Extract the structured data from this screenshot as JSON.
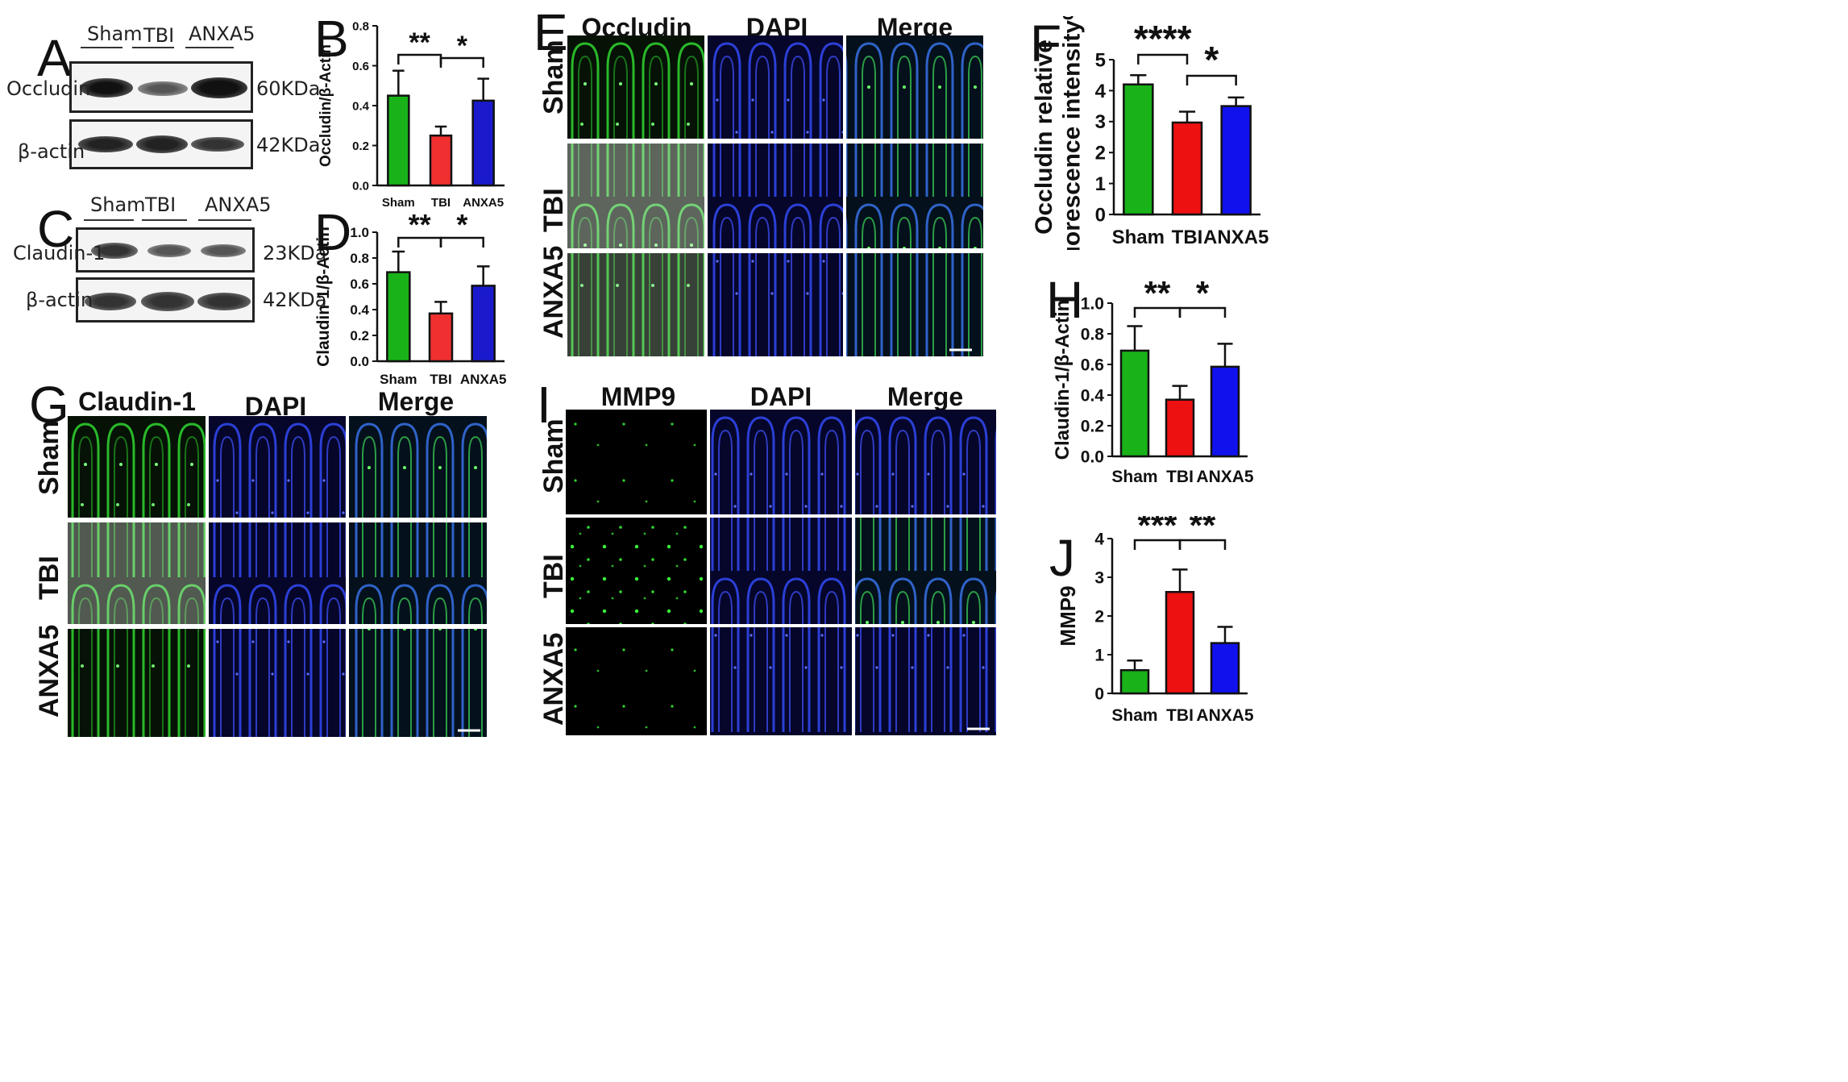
{
  "panels": {
    "A": {
      "letter": "A",
      "lanes": [
        "Sham",
        "TBI",
        "ANXA5"
      ],
      "rows": [
        {
          "protein": "Occludin",
          "size": "60KDa"
        },
        {
          "protein": "β-actin",
          "size": "42KDa"
        }
      ]
    },
    "C": {
      "letter": "C",
      "lanes": [
        "Sham",
        "TBI",
        "ANXA5"
      ],
      "rows": [
        {
          "protein": "Claudin-1",
          "size": "23KDa"
        },
        {
          "protein": "β-actin",
          "size": "42KDa"
        }
      ]
    },
    "E": {
      "letter": "E",
      "columns": [
        "Occludin",
        "DAPI",
        "Merge"
      ],
      "rows": [
        "Sham",
        "TBI",
        "ANXA5"
      ]
    },
    "G": {
      "letter": "G",
      "columns": [
        "Claudin-1",
        "DAPI",
        "Merge"
      ],
      "rows": [
        "Sham",
        "TBI",
        "ANXA5"
      ]
    },
    "I": {
      "letter": "I",
      "columns": [
        "MMP9",
        "DAPI",
        "Merge"
      ],
      "rows": [
        "Sham",
        "TBI",
        "ANXA5"
      ]
    }
  },
  "colors": {
    "sham": "#19b219",
    "tbi": "#f03030",
    "anxa5": "#1a1acc",
    "tbi_bright": "#ee1111",
    "anxa5_bright": "#1111ee",
    "green_stain": "#2fd62f",
    "blue_stain": "#2b3fd6"
  },
  "chart_data": [
    {
      "id": "B",
      "letter": "B",
      "type": "bar",
      "categories": [
        "Sham",
        "TBI",
        "ANXA5"
      ],
      "values": [
        0.45,
        0.25,
        0.425
      ],
      "errors": [
        0.125,
        0.045,
        0.11
      ],
      "ylabel": "Occludin/β-Actin",
      "ylim": [
        0,
        0.8
      ],
      "yticks": [
        "0.0",
        "0.2",
        "0.4",
        "0.6",
        "0.8"
      ],
      "significance": [
        "**",
        "*"
      ]
    },
    {
      "id": "D",
      "letter": "D",
      "type": "bar",
      "categories": [
        "Sham",
        "TBI",
        "ANXA5"
      ],
      "values": [
        0.69,
        0.37,
        0.585
      ],
      "errors": [
        0.16,
        0.09,
        0.15
      ],
      "ylabel": "Claudin-1/β-Actin",
      "ylim": [
        0,
        1.0
      ],
      "yticks": [
        "0.0",
        "0.2",
        "0.4",
        "0.6",
        "0.8",
        "1.0"
      ],
      "significance": [
        "**",
        "*"
      ]
    },
    {
      "id": "F",
      "letter": "F",
      "type": "bar",
      "categories": [
        "Sham",
        "TBI",
        "ANXA5"
      ],
      "values": [
        4.2,
        2.97,
        3.5
      ],
      "errors": [
        0.3,
        0.35,
        0.28
      ],
      "ylabel": "Occludin relative fluorescence intensity%",
      "ylim": [
        0,
        5
      ],
      "yticks": [
        "0",
        "1",
        "2",
        "3",
        "4",
        "5"
      ],
      "significance": [
        "****",
        "*"
      ]
    },
    {
      "id": "H",
      "letter": "H",
      "type": "bar",
      "categories": [
        "Sham",
        "TBI",
        "ANXA5"
      ],
      "values": [
        0.69,
        0.37,
        0.585
      ],
      "errors": [
        0.16,
        0.09,
        0.15
      ],
      "ylabel": "Claudin-1/β-Actin",
      "ylim": [
        0,
        1.0
      ],
      "yticks": [
        "0.0",
        "0.2",
        "0.4",
        "0.6",
        "0.8",
        "1.0"
      ],
      "significance": [
        "**",
        "*"
      ]
    },
    {
      "id": "J",
      "letter": "J",
      "type": "bar",
      "categories": [
        "Sham",
        "TBI",
        "ANXA5"
      ],
      "values": [
        0.6,
        2.62,
        1.3
      ],
      "errors": [
        0.25,
        0.58,
        0.42
      ],
      "ylabel": "MMP9",
      "ylim": [
        0,
        4
      ],
      "yticks": [
        "0",
        "1",
        "2",
        "3",
        "4"
      ],
      "significance": [
        "***",
        "**"
      ]
    }
  ]
}
